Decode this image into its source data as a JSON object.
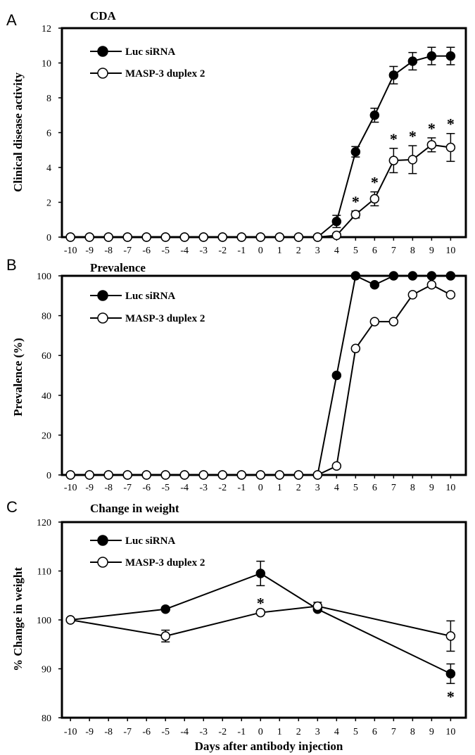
{
  "colors": {
    "line": "#000000",
    "filled_marker": "#000000",
    "open_marker": "#ffffff"
  },
  "chart_data": [
    {
      "type": "line",
      "panel": "A",
      "title": "CDA",
      "xlabel": "",
      "ylabel": "Clinical disease activity",
      "x": [
        -10,
        -9,
        -8,
        -7,
        -6,
        -5,
        -4,
        -3,
        -2,
        -1,
        0,
        1,
        2,
        3,
        4,
        5,
        6,
        7,
        8,
        9,
        10
      ],
      "x_tick_labels": [
        "-10",
        "-9",
        "-8",
        "-7",
        "-6",
        "-5",
        "-4",
        "-3",
        "-2",
        "-1",
        "0",
        "1",
        "2",
        "3",
        "4",
        "5",
        "6",
        "7",
        "8",
        "9",
        "10"
      ],
      "ylim": [
        0,
        12
      ],
      "y_ticks": [
        0,
        2,
        4,
        6,
        8,
        10,
        12
      ],
      "legend_position": "top-left",
      "series": [
        {
          "name": "Luc siRNA",
          "marker": "filled",
          "values": [
            0,
            0,
            0,
            0,
            0,
            0,
            0,
            0,
            0,
            0,
            0,
            0,
            0,
            0,
            0.9,
            4.9,
            7.0,
            9.3,
            10.1,
            10.4,
            10.4
          ],
          "errors": [
            0,
            0,
            0,
            0,
            0,
            0,
            0,
            0,
            0,
            0,
            0,
            0,
            0,
            0,
            0.35,
            0.3,
            0.4,
            0.5,
            0.5,
            0.5,
            0.5
          ]
        },
        {
          "name": "MASP-3 duplex 2",
          "marker": "open",
          "values": [
            0,
            0,
            0,
            0,
            0,
            0,
            0,
            0,
            0,
            0,
            0,
            0,
            0,
            0,
            0.1,
            1.3,
            2.2,
            4.4,
            4.45,
            5.3,
            5.15
          ],
          "errors": [
            0,
            0,
            0,
            0,
            0,
            0,
            0,
            0,
            0,
            0,
            0,
            0,
            0,
            0,
            0.1,
            0.2,
            0.4,
            0.7,
            0.8,
            0.4,
            0.8
          ]
        }
      ],
      "annotations": [
        {
          "text": "*",
          "x": 5
        },
        {
          "text": "*",
          "x": 6
        },
        {
          "text": "*",
          "x": 7
        },
        {
          "text": "*",
          "x": 8
        },
        {
          "text": "*",
          "x": 9
        },
        {
          "text": "*",
          "x": 10
        }
      ]
    },
    {
      "type": "line",
      "panel": "B",
      "title": "Prevalence",
      "xlabel": "",
      "ylabel": "Prevalence (%)",
      "x": [
        -10,
        -9,
        -8,
        -7,
        -6,
        -5,
        -4,
        -3,
        -2,
        -1,
        0,
        1,
        2,
        3,
        4,
        5,
        6,
        7,
        8,
        9,
        10
      ],
      "x_tick_labels": [
        "-10",
        "-9",
        "-8",
        "-7",
        "-6",
        "-5",
        "-4",
        "-3",
        "-2",
        "-1",
        "0",
        "1",
        "2",
        "3",
        "4",
        "5",
        "6",
        "7",
        "8",
        "9",
        "10"
      ],
      "ylim": [
        0,
        100
      ],
      "y_ticks": [
        0,
        20,
        40,
        60,
        80,
        100
      ],
      "legend_position": "top-left",
      "series": [
        {
          "name": "Luc siRNA",
          "marker": "filled",
          "values": [
            0,
            0,
            0,
            0,
            0,
            0,
            0,
            0,
            0,
            0,
            0,
            0,
            0,
            0,
            50,
            100,
            95.5,
            100,
            100,
            100,
            100
          ]
        },
        {
          "name": "MASP-3 duplex 2",
          "marker": "open",
          "values": [
            0,
            0,
            0,
            0,
            0,
            0,
            0,
            0,
            0,
            0,
            0,
            0,
            0,
            0,
            4.5,
            63.5,
            77,
            77,
            90.5,
            95.5,
            90.5
          ]
        }
      ],
      "annotations": []
    },
    {
      "type": "line",
      "panel": "C",
      "title": "Change in weight",
      "xlabel": "Days after antibody injection",
      "ylabel": "% Change in weight",
      "x_tick_values": [
        -10,
        -9,
        -8,
        -7,
        -6,
        -5,
        -4,
        -3,
        -2,
        -1,
        0,
        1,
        2,
        3,
        4,
        5,
        6,
        7,
        8,
        9,
        10
      ],
      "x_tick_labels": [
        "-10",
        "-9",
        "-8",
        "-7",
        "-6",
        "-5",
        "-4",
        "-3",
        "-2",
        "-1",
        "0",
        "1",
        "2",
        "3",
        "4",
        "5",
        "6",
        "7",
        "8",
        "9",
        "10"
      ],
      "ylim": [
        80,
        120
      ],
      "y_ticks": [
        80,
        90,
        100,
        110,
        120
      ],
      "legend_position": "top-left",
      "series": [
        {
          "name": "Luc siRNA",
          "marker": "filled",
          "x": [
            -10,
            -5,
            0,
            3,
            10
          ],
          "values": [
            100,
            102.2,
            109.5,
            102.2,
            89
          ],
          "errors": [
            0,
            0,
            2.5,
            0,
            2.0
          ]
        },
        {
          "name": "MASP-3 duplex 2",
          "marker": "open",
          "x": [
            -10,
            -5,
            0,
            3,
            10
          ],
          "values": [
            100,
            96.7,
            101.5,
            102.8,
            96.7
          ],
          "errors": [
            0,
            1.2,
            0,
            0.8,
            3.1
          ]
        }
      ],
      "annotations": [
        {
          "text": "*",
          "x": 0,
          "anchor": "above"
        },
        {
          "text": "*",
          "x": 10,
          "anchor": "below"
        }
      ]
    }
  ]
}
